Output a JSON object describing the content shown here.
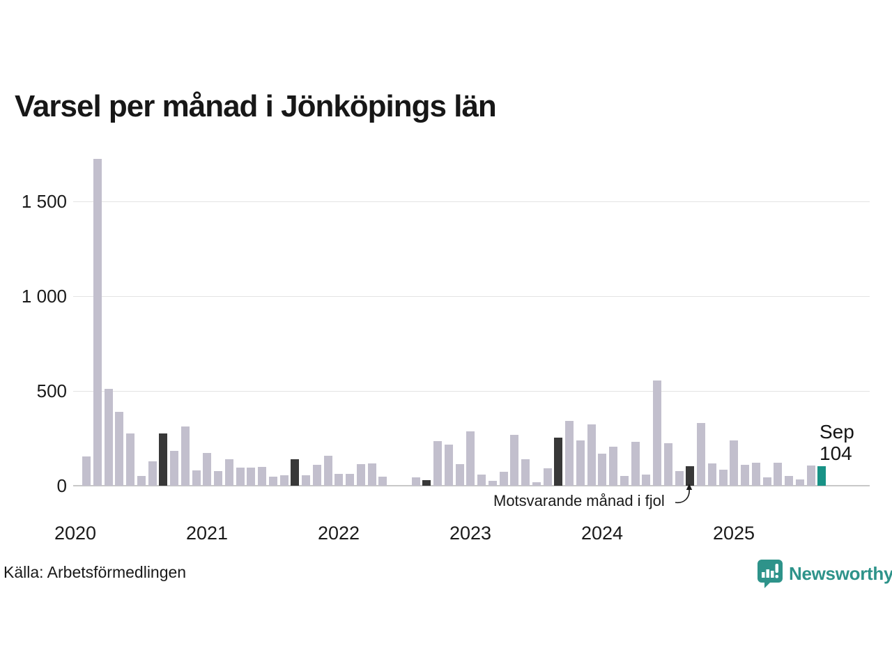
{
  "title": "Varsel per månad i Jönköpings län",
  "source": "Källa: Arbetsförmedlingen",
  "brand": {
    "name": "Newsworthy",
    "color": "#2e938a"
  },
  "annotation": {
    "text": "Motsvarande månad i fjol"
  },
  "highlight_label": {
    "month": "Sep",
    "value": "104"
  },
  "colors": {
    "bar": "#c2bfcd",
    "bar_prev_year_month": "#383838",
    "bar_current": "#189286",
    "gridline": "#e3e3e3",
    "baseline": "#c8c8c8",
    "text": "#1a1a1a"
  },
  "chart_data": {
    "type": "bar",
    "title": "Varsel per månad i Jönköpings län",
    "xlabel": "",
    "ylabel": "",
    "ylim": [
      0,
      1750
    ],
    "grid": true,
    "legend": "none",
    "yticks": [
      0,
      500,
      1000,
      1500
    ],
    "ytick_labels": [
      "0",
      "500",
      "1 000",
      "1 500"
    ],
    "year_labels": [
      "2020",
      "2021",
      "2022",
      "2023",
      "2024",
      "2025"
    ],
    "series": [
      {
        "label": "Feb 2020",
        "value": 155,
        "kind": "normal"
      },
      {
        "label": "Mar 2020",
        "value": 1725,
        "kind": "normal"
      },
      {
        "label": "Apr 2020",
        "value": 510,
        "kind": "normal"
      },
      {
        "label": "May 2020",
        "value": 390,
        "kind": "normal"
      },
      {
        "label": "Jun 2020",
        "value": 275,
        "kind": "normal"
      },
      {
        "label": "Jul 2020",
        "value": 50,
        "kind": "normal"
      },
      {
        "label": "Aug 2020",
        "value": 130,
        "kind": "normal"
      },
      {
        "label": "Sep 2020",
        "value": 275,
        "kind": "prev_year_month"
      },
      {
        "label": "Oct 2020",
        "value": 185,
        "kind": "normal"
      },
      {
        "label": "Nov 2020",
        "value": 313,
        "kind": "normal"
      },
      {
        "label": "Dec 2020",
        "value": 82,
        "kind": "normal"
      },
      {
        "label": "Jan 2021",
        "value": 171,
        "kind": "normal"
      },
      {
        "label": "Feb 2021",
        "value": 79,
        "kind": "normal"
      },
      {
        "label": "Mar 2021",
        "value": 140,
        "kind": "normal"
      },
      {
        "label": "Apr 2021",
        "value": 95,
        "kind": "normal"
      },
      {
        "label": "May 2021",
        "value": 95,
        "kind": "normal"
      },
      {
        "label": "Jun 2021",
        "value": 101,
        "kind": "normal"
      },
      {
        "label": "Jul 2021",
        "value": 46,
        "kind": "normal"
      },
      {
        "label": "Aug 2021",
        "value": 56,
        "kind": "normal"
      },
      {
        "label": "Sep 2021",
        "value": 140,
        "kind": "prev_year_month"
      },
      {
        "label": "Oct 2021",
        "value": 55,
        "kind": "normal"
      },
      {
        "label": "Nov 2021",
        "value": 109,
        "kind": "normal"
      },
      {
        "label": "Dec 2021",
        "value": 158,
        "kind": "normal"
      },
      {
        "label": "Jan 2022",
        "value": 61,
        "kind": "normal"
      },
      {
        "label": "Feb 2022",
        "value": 64,
        "kind": "normal"
      },
      {
        "label": "Mar 2022",
        "value": 115,
        "kind": "normal"
      },
      {
        "label": "Apr 2022",
        "value": 119,
        "kind": "normal"
      },
      {
        "label": "May 2022",
        "value": 49,
        "kind": "normal"
      },
      {
        "label": "Jun 2022",
        "value": 0,
        "kind": "normal"
      },
      {
        "label": "Jul 2022",
        "value": 0,
        "kind": "normal"
      },
      {
        "label": "Aug 2022",
        "value": 45,
        "kind": "normal"
      },
      {
        "label": "Sep 2022",
        "value": 30,
        "kind": "prev_year_month"
      },
      {
        "label": "Oct 2022",
        "value": 237,
        "kind": "normal"
      },
      {
        "label": "Nov 2022",
        "value": 217,
        "kind": "normal"
      },
      {
        "label": "Dec 2022",
        "value": 114,
        "kind": "normal"
      },
      {
        "label": "Jan 2023",
        "value": 285,
        "kind": "normal"
      },
      {
        "label": "Feb 2023",
        "value": 57,
        "kind": "normal"
      },
      {
        "label": "Mar 2023",
        "value": 25,
        "kind": "normal"
      },
      {
        "label": "Apr 2023",
        "value": 72,
        "kind": "normal"
      },
      {
        "label": "May 2023",
        "value": 269,
        "kind": "normal"
      },
      {
        "label": "Jun 2023",
        "value": 138,
        "kind": "normal"
      },
      {
        "label": "Jul 2023",
        "value": 17,
        "kind": "normal"
      },
      {
        "label": "Aug 2023",
        "value": 91,
        "kind": "normal"
      },
      {
        "label": "Sep 2023",
        "value": 254,
        "kind": "prev_year_month"
      },
      {
        "label": "Oct 2023",
        "value": 343,
        "kind": "normal"
      },
      {
        "label": "Nov 2023",
        "value": 239,
        "kind": "normal"
      },
      {
        "label": "Dec 2023",
        "value": 322,
        "kind": "normal"
      },
      {
        "label": "Jan 2024",
        "value": 169,
        "kind": "normal"
      },
      {
        "label": "Feb 2024",
        "value": 205,
        "kind": "normal"
      },
      {
        "label": "Mar 2024",
        "value": 51,
        "kind": "normal"
      },
      {
        "label": "Apr 2024",
        "value": 230,
        "kind": "normal"
      },
      {
        "label": "May 2024",
        "value": 58,
        "kind": "normal"
      },
      {
        "label": "Jun 2024",
        "value": 555,
        "kind": "normal"
      },
      {
        "label": "Jul 2024",
        "value": 223,
        "kind": "normal"
      },
      {
        "label": "Aug 2024",
        "value": 77,
        "kind": "normal"
      },
      {
        "label": "Sep 2024",
        "value": 103,
        "kind": "prev_year_month"
      },
      {
        "label": "Oct 2024",
        "value": 331,
        "kind": "normal"
      },
      {
        "label": "Nov 2024",
        "value": 118,
        "kind": "normal"
      },
      {
        "label": "Dec 2024",
        "value": 83,
        "kind": "normal"
      },
      {
        "label": "Jan 2025",
        "value": 240,
        "kind": "normal"
      },
      {
        "label": "Feb 2025",
        "value": 110,
        "kind": "normal"
      },
      {
        "label": "Mar 2025",
        "value": 122,
        "kind": "normal"
      },
      {
        "label": "Apr 2025",
        "value": 44,
        "kind": "normal"
      },
      {
        "label": "May 2025",
        "value": 122,
        "kind": "normal"
      },
      {
        "label": "Jun 2025",
        "value": 53,
        "kind": "normal"
      },
      {
        "label": "Jul 2025",
        "value": 32,
        "kind": "normal"
      },
      {
        "label": "Aug 2025",
        "value": 105,
        "kind": "normal"
      },
      {
        "label": "Sep 2025",
        "value": 104,
        "kind": "current"
      }
    ]
  }
}
